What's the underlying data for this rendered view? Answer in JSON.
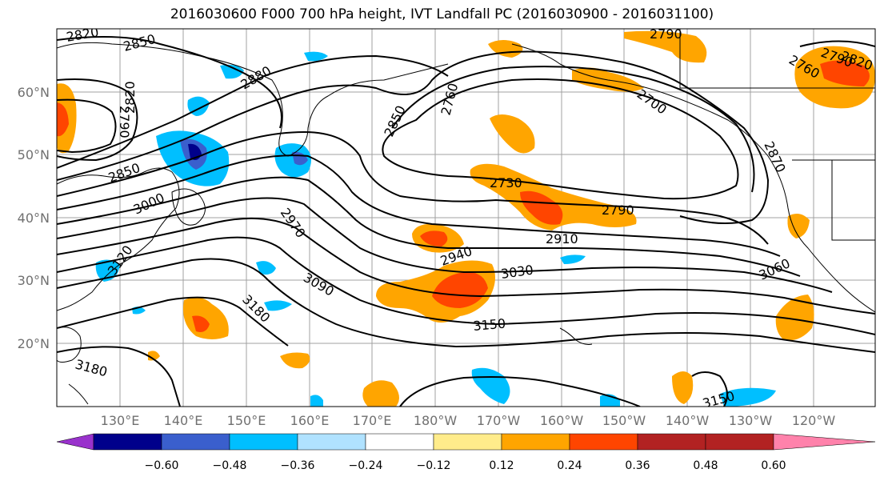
{
  "title": "2016030600 F000 700 hPa height, IVT Landfall PC (2016030900 - 2016031100)",
  "map": {
    "type": "filled-contour-map",
    "lon_labels": [
      "130°E",
      "140°E",
      "150°E",
      "160°E",
      "170°E",
      "180°W",
      "170°W",
      "160°W",
      "150°W",
      "140°W",
      "130°W",
      "120°W"
    ],
    "lat_labels": [
      "60°N",
      "50°N",
      "40°N",
      "30°N",
      "20°N"
    ],
    "height_contour_labels": [
      {
        "text": "2820"
      },
      {
        "text": "2850"
      },
      {
        "text": "2880"
      },
      {
        "text": "2790"
      },
      {
        "text": "2820"
      },
      {
        "text": "2850"
      },
      {
        "text": "3000"
      },
      {
        "text": "3120"
      },
      {
        "text": "2970"
      },
      {
        "text": "3090"
      },
      {
        "text": "3180"
      },
      {
        "text": "3180"
      },
      {
        "text": "2760"
      },
      {
        "text": "2850"
      },
      {
        "text": "2730"
      },
      {
        "text": "2940"
      },
      {
        "text": "3030"
      },
      {
        "text": "2910"
      },
      {
        "text": "2790"
      },
      {
        "text": "3150"
      },
      {
        "text": "2790"
      },
      {
        "text": "2700"
      },
      {
        "text": "2760"
      },
      {
        "text": "2790"
      },
      {
        "text": "2820"
      },
      {
        "text": "2870"
      },
      {
        "text": "3060"
      },
      {
        "text": "3150"
      }
    ],
    "colors": {
      "contour_line": "#000000",
      "coastline": "#000000",
      "grid": "#a0a0a0"
    }
  },
  "colorbar": {
    "ticks": [
      "−0.60",
      "−0.48",
      "−0.36",
      "−0.24",
      "−0.12",
      "0.12",
      "0.24",
      "0.36",
      "0.48",
      "0.60"
    ],
    "colors": [
      "#9932cc",
      "#00008b",
      "#3a5fcd",
      "#00bfff",
      "#b0e2ff",
      "#ffffff",
      "#ffec8b",
      "#ffa500",
      "#ff4500",
      "#b22222",
      "#ff82ab"
    ]
  }
}
